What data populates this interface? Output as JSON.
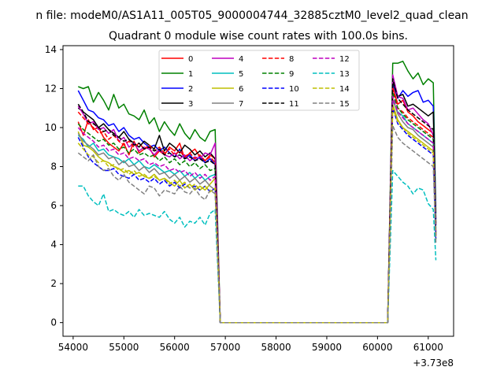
{
  "chart_data": {
    "type": "line",
    "suptitle": "n file: modeM0/AS1A11_005T05_9000004744_32885cztM0_level2_quad_clean",
    "title": "Quadrant 0 module wise count rates with 100.0s bins.",
    "xlabel": "",
    "ylabel": "",
    "x_offset_label": "+3.73e8",
    "xlim": [
      53800,
      61500
    ],
    "ylim": [
      -0.7,
      14.2
    ],
    "xticks": [
      54000,
      55000,
      56000,
      57000,
      58000,
      59000,
      60000,
      61000
    ],
    "xtick_labels": [
      "54000",
      "55000",
      "56000",
      "57000",
      "58000",
      "59000",
      "60000",
      "61000"
    ],
    "yticks": [
      0,
      2,
      4,
      6,
      8,
      10,
      12,
      14
    ],
    "ytick_labels": [
      "0",
      "2",
      "4",
      "6",
      "8",
      "10",
      "12",
      "14"
    ],
    "legend_location": "upper-center",
    "x_segments": {
      "seg1": {
        "start": 54100,
        "end": 56800,
        "step": 100
      },
      "gap": [
        56900,
        57000,
        58000,
        59000,
        60000,
        60200
      ],
      "seg2": {
        "start": 60300,
        "end": 61100,
        "step": 100
      },
      "tail_x": 61150
    },
    "series": [
      {
        "name": "0",
        "color": "#ff0000",
        "dash": "solid",
        "seg1": [
          10.3,
          9.6,
          10.4,
          9.9,
          10.0,
          9.5,
          9.2,
          9.0,
          8.8,
          9.2,
          8.6,
          9.3,
          8.7,
          8.9,
          9.0,
          8.5,
          8.8,
          8.6,
          9.0,
          8.8,
          9.2,
          8.4,
          8.7,
          8.9,
          8.5,
          8.3,
          8.6,
          8.4
        ],
        "seg2": [
          12.1,
          11.2,
          11.4,
          10.8,
          10.6,
          10.3,
          10.1,
          9.9,
          9.7
        ],
        "tail": 4.6
      },
      {
        "name": "1",
        "color": "#008000",
        "dash": "solid",
        "seg1": [
          12.1,
          12.0,
          12.1,
          11.3,
          11.8,
          11.4,
          10.9,
          11.7,
          11.0,
          11.2,
          10.7,
          10.6,
          10.4,
          10.9,
          10.2,
          10.5,
          9.8,
          10.3,
          9.9,
          9.6,
          10.2,
          9.7,
          9.4,
          9.9,
          9.5,
          9.3,
          9.8,
          9.9
        ],
        "seg2": [
          13.3,
          13.3,
          13.4,
          12.9,
          12.5,
          12.8,
          12.2,
          12.5,
          12.3
        ],
        "tail": 5.6
      },
      {
        "name": "2",
        "color": "#0000ff",
        "dash": "solid",
        "seg1": [
          11.9,
          11.4,
          10.9,
          10.8,
          10.5,
          10.4,
          10.1,
          10.2,
          9.8,
          10.0,
          9.6,
          9.4,
          9.5,
          9.2,
          9.0,
          9.1,
          8.8,
          9.0,
          8.7,
          8.5,
          8.9,
          8.4,
          8.6,
          8.3,
          8.5,
          8.2,
          8.4,
          8.1
        ],
        "seg2": [
          12.3,
          11.5,
          11.9,
          11.6,
          11.8,
          11.9,
          11.3,
          11.4,
          11.1
        ],
        "tail": 5.3
      },
      {
        "name": "3",
        "color": "#000000",
        "dash": "solid",
        "seg1": [
          11.0,
          10.8,
          10.6,
          10.4,
          10.0,
          10.2,
          9.9,
          9.7,
          9.5,
          9.8,
          9.4,
          9.2,
          9.0,
          9.3,
          9.1,
          8.9,
          9.6,
          8.8,
          9.2,
          9.0,
          8.7,
          9.1,
          8.9,
          8.6,
          8.8,
          8.5,
          8.7,
          8.4
        ],
        "seg2": [
          12.4,
          11.6,
          11.7,
          11.1,
          11.2,
          11.0,
          10.8,
          10.6,
          10.8
        ],
        "tail": 5.1
      },
      {
        "name": "4",
        "color": "#bf00bf",
        "dash": "solid",
        "seg1": [
          11.1,
          10.7,
          10.2,
          10.3,
          9.9,
          10.0,
          9.7,
          9.9,
          9.3,
          9.5,
          9.0,
          9.2,
          8.8,
          9.0,
          8.9,
          8.6,
          8.9,
          8.6,
          8.5,
          8.7,
          8.4,
          8.6,
          8.3,
          8.5,
          8.4,
          8.7,
          8.6,
          9.2
        ],
        "seg2": [
          12.7,
          11.6,
          11.5,
          10.9,
          11.0,
          10.7,
          10.4,
          10.2,
          9.6
        ],
        "tail": 5.0
      },
      {
        "name": "5",
        "color": "#00bfbf",
        "dash": "solid",
        "seg1": [
          9.6,
          9.4,
          9.0,
          9.2,
          8.8,
          8.9,
          8.6,
          8.5,
          8.4,
          8.2,
          8.4,
          8.1,
          8.3,
          8.0,
          7.9,
          8.1,
          7.9,
          7.7,
          7.8,
          7.6,
          7.8,
          7.5,
          7.7,
          7.4,
          7.6,
          7.3,
          7.5,
          7.6
        ],
        "seg2": [
          11.4,
          10.8,
          10.6,
          10.2,
          10.0,
          9.8,
          9.6,
          9.4,
          9.2
        ],
        "tail": 4.8
      },
      {
        "name": "6",
        "color": "#bfbf00",
        "dash": "solid",
        "seg1": [
          9.8,
          9.1,
          9.0,
          8.8,
          8.5,
          8.3,
          8.2,
          8.0,
          7.9,
          7.7,
          7.8,
          7.6,
          7.7,
          7.5,
          7.4,
          7.6,
          7.3,
          7.4,
          7.2,
          7.0,
          7.3,
          6.9,
          7.1,
          6.8,
          7.0,
          6.8,
          7.1,
          7.4
        ],
        "seg2": [
          11.2,
          10.4,
          10.0,
          9.8,
          9.6,
          9.4,
          9.2,
          9.0,
          8.8
        ],
        "tail": 4.6
      },
      {
        "name": "7",
        "color": "#808080",
        "dash": "solid",
        "seg1": [
          9.7,
          9.3,
          9.1,
          8.9,
          8.6,
          8.7,
          8.4,
          8.5,
          8.1,
          8.3,
          8.0,
          8.1,
          7.8,
          8.0,
          7.7,
          7.9,
          7.6,
          7.7,
          7.4,
          7.6,
          7.3,
          7.5,
          7.2,
          7.4,
          7.1,
          7.3,
          7.0,
          6.8
        ],
        "seg2": [
          11.5,
          10.7,
          10.3,
          10.0,
          9.9,
          9.6,
          9.4,
          9.2,
          9.0
        ],
        "tail": 4.5
      },
      {
        "name": "8",
        "color": "#ff0000",
        "dash": "dashed",
        "seg1": [
          10.8,
          10.5,
          10.2,
          10.0,
          9.7,
          9.8,
          9.4,
          9.6,
          9.3,
          9.1,
          9.3,
          9.0,
          9.2,
          8.9,
          9.1,
          8.8,
          9.0,
          8.7,
          8.9,
          8.6,
          8.8,
          8.5,
          8.7,
          8.4,
          8.6,
          8.3,
          8.5,
          8.2
        ],
        "seg2": [
          12.0,
          11.0,
          10.8,
          10.5,
          10.3,
          10.1,
          9.9,
          9.7,
          9.5
        ],
        "tail": 4.4
      },
      {
        "name": "9",
        "color": "#008000",
        "dash": "dashed",
        "seg1": [
          10.2,
          9.9,
          9.7,
          9.5,
          9.3,
          9.4,
          9.1,
          9.2,
          8.9,
          9.0,
          8.7,
          8.9,
          8.6,
          8.7,
          8.5,
          8.6,
          8.3,
          8.5,
          8.2,
          8.4,
          8.1,
          8.3,
          8.0,
          8.2,
          7.9,
          8.1,
          7.8,
          7.9
        ],
        "seg2": [
          11.8,
          11.0,
          10.7,
          10.4,
          10.2,
          10.0,
          9.8,
          9.6,
          9.4
        ],
        "tail": 4.3
      },
      {
        "name": "10",
        "color": "#0000ff",
        "dash": "dashed",
        "seg1": [
          9.5,
          9.0,
          8.5,
          8.2,
          8.0,
          7.8,
          7.8,
          7.9,
          7.6,
          7.5,
          7.4,
          7.6,
          7.3,
          7.4,
          7.2,
          7.4,
          7.1,
          7.3,
          7.0,
          7.2,
          6.9,
          7.1,
          6.9,
          7.0,
          6.8,
          7.0,
          6.7,
          6.9
        ],
        "seg2": [
          11.0,
          10.2,
          9.9,
          9.6,
          9.4,
          9.2,
          9.0,
          8.8,
          8.6
        ],
        "tail": 4.2
      },
      {
        "name": "11",
        "color": "#000000",
        "dash": "dashed",
        "seg1": [
          11.2,
          10.8,
          10.3,
          10.2,
          10.0,
          9.8,
          9.9,
          9.6,
          9.5,
          9.3,
          9.4,
          9.1,
          9.2,
          8.9,
          9.0,
          8.8,
          8.9,
          8.6,
          8.7,
          8.5,
          8.6,
          8.4,
          8.5,
          8.3,
          8.4,
          8.2,
          8.3,
          8.1
        ],
        "seg2": [
          12.5,
          11.5,
          11.2,
          10.9,
          10.7,
          10.5,
          10.3,
          10.1,
          9.9
        ],
        "tail": 4.9
      },
      {
        "name": "12",
        "color": "#bf00bf",
        "dash": "dashed",
        "seg1": [
          10.0,
          9.7,
          9.5,
          9.3,
          9.0,
          9.1,
          8.8,
          8.9,
          8.6,
          8.7,
          8.4,
          8.5,
          8.3,
          8.4,
          8.1,
          8.2,
          8.0,
          8.1,
          7.8,
          7.9,
          7.7,
          7.8,
          7.5,
          7.7,
          7.4,
          7.6,
          7.3,
          7.5
        ],
        "seg2": [
          11.6,
          10.8,
          10.5,
          10.2,
          10.0,
          9.8,
          9.6,
          9.4,
          9.2
        ],
        "tail": 4.5
      },
      {
        "name": "13",
        "color": "#00bfbf",
        "dash": "dashed",
        "seg1": [
          7.0,
          7.0,
          6.5,
          6.2,
          6.0,
          6.6,
          5.7,
          5.8,
          5.6,
          5.5,
          5.7,
          5.4,
          5.8,
          5.5,
          5.6,
          5.5,
          5.4,
          5.7,
          5.3,
          5.1,
          5.4,
          4.9,
          5.2,
          5.1,
          5.4,
          5.0,
          5.6,
          5.8
        ],
        "seg2": [
          7.8,
          7.5,
          7.2,
          7.0,
          6.6,
          6.9,
          6.8,
          6.1,
          5.8
        ],
        "tail": 3.2
      },
      {
        "name": "14",
        "color": "#bfbf00",
        "dash": "dashed",
        "seg1": [
          9.2,
          8.9,
          8.6,
          8.5,
          8.2,
          8.3,
          8.0,
          8.1,
          7.8,
          7.9,
          7.6,
          7.8,
          7.5,
          7.6,
          7.4,
          7.5,
          7.3,
          7.4,
          7.1,
          7.3,
          7.0,
          7.2,
          6.9,
          7.1,
          6.8,
          7.0,
          6.7,
          6.9
        ],
        "seg2": [
          11.0,
          10.3,
          10.0,
          9.7,
          9.5,
          9.3,
          9.1,
          8.9,
          8.7
        ],
        "tail": 4.3
      },
      {
        "name": "15",
        "color": "#808080",
        "dash": "dashed",
        "seg1": [
          8.7,
          8.5,
          8.3,
          8.6,
          8.0,
          7.8,
          7.9,
          7.5,
          7.3,
          7.6,
          7.2,
          7.0,
          6.8,
          6.6,
          7.0,
          6.9,
          6.5,
          6.8,
          6.7,
          6.6,
          7.0,
          6.7,
          6.6,
          6.9,
          6.5,
          6.3,
          6.8,
          6.6
        ],
        "seg2": [
          10.1,
          9.5,
          9.2,
          9.0,
          8.8,
          8.6,
          8.4,
          8.2,
          8.0
        ],
        "tail": 4.1
      }
    ]
  }
}
